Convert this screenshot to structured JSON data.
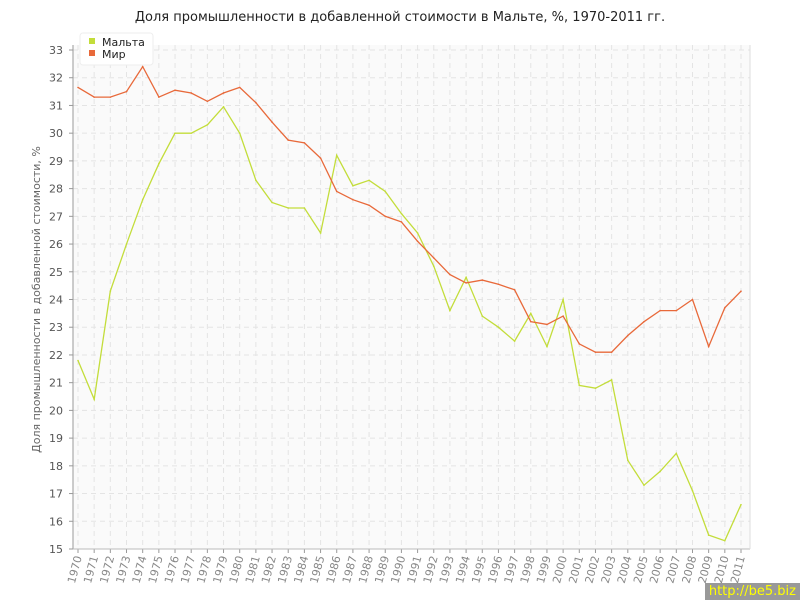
{
  "chart_data": {
    "type": "line",
    "title": "Доля промышленности в добавленной стоимости в Мальте, %, 1970-2011 гг.",
    "xlabel": "",
    "ylabel": "Доля промышленности в добавленной стоимости, %",
    "ylim": [
      15,
      33
    ],
    "grid": true,
    "legend_position": "top-left",
    "x": [
      1970,
      1971,
      1972,
      1973,
      1974,
      1975,
      1976,
      1977,
      1978,
      1979,
      1980,
      1981,
      1982,
      1983,
      1984,
      1985,
      1986,
      1987,
      1988,
      1989,
      1990,
      1991,
      1992,
      1993,
      1994,
      1995,
      1996,
      1997,
      1998,
      1999,
      2000,
      2001,
      2002,
      2003,
      2004,
      2005,
      2006,
      2007,
      2008,
      2009,
      2010,
      2011
    ],
    "series": [
      {
        "name": "Мальта",
        "color": "#c3dd3a",
        "values": [
          21.8,
          20.4,
          24.3,
          26.0,
          27.6,
          28.9,
          30.0,
          30.0,
          30.3,
          30.95,
          30.0,
          28.3,
          27.5,
          27.3,
          27.3,
          26.4,
          29.2,
          28.1,
          28.3,
          27.9,
          27.1,
          26.4,
          25.2,
          23.6,
          24.8,
          23.4,
          23.0,
          22.5,
          23.5,
          22.3,
          24.0,
          20.9,
          20.8,
          21.1,
          18.2,
          17.3,
          17.8,
          18.45,
          17.1,
          15.5,
          15.3,
          16.6
        ]
      },
      {
        "name": "Мир",
        "color": "#e8693a",
        "values": [
          31.65,
          31.3,
          31.3,
          31.5,
          32.4,
          31.3,
          31.55,
          31.45,
          31.15,
          31.45,
          31.65,
          31.1,
          30.4,
          29.75,
          29.65,
          29.1,
          27.9,
          27.6,
          27.4,
          27.0,
          26.8,
          26.1,
          25.5,
          24.9,
          24.6,
          24.7,
          24.55,
          24.35,
          23.2,
          23.1,
          23.4,
          22.4,
          22.1,
          22.1,
          22.7,
          23.2,
          23.6,
          23.6,
          24.0,
          22.3,
          23.7,
          24.3
        ]
      }
    ]
  },
  "watermark": "http://be5.biz"
}
